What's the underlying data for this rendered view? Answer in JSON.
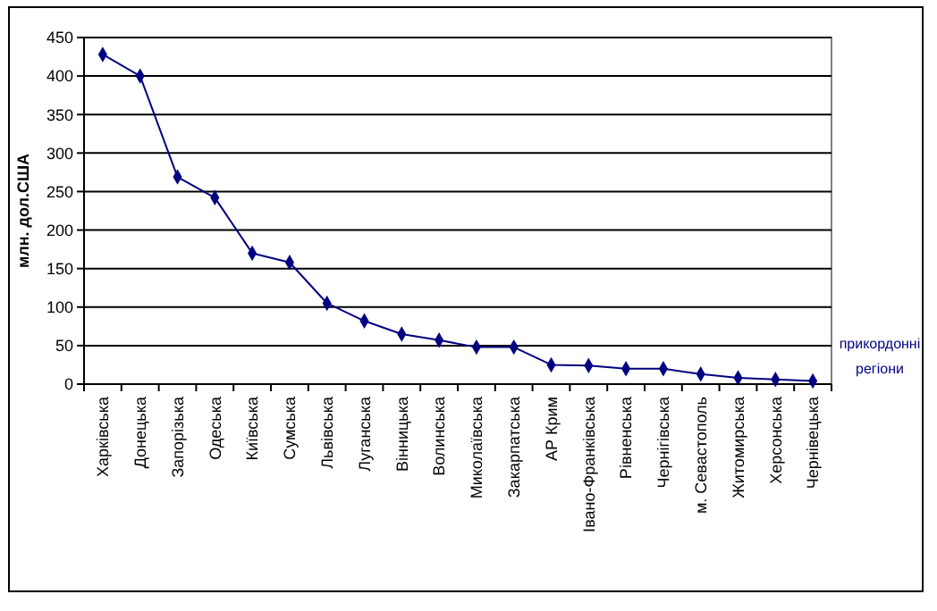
{
  "chart_data": {
    "type": "line",
    "categories": [
      "Харківська",
      "Донецька",
      "Запорізька",
      "Одеська",
      "Київська",
      "Сумська",
      "Львівська",
      "Луганська",
      "Вінницька",
      "Волинська",
      "Миколаївська",
      "Закарпатська",
      "АР Крим",
      "Івано-Франківська",
      "Рівненська",
      "Чернігівська",
      "м. Севастополь",
      "Житомирська",
      "Херсонська",
      "Чернівецька"
    ],
    "series": [
      {
        "color": "#000080",
        "values": [
          428,
          400,
          269,
          242,
          170,
          158,
          105,
          82,
          65,
          57,
          48,
          48,
          25,
          24,
          20,
          20,
          13,
          8,
          6,
          4
        ]
      }
    ],
    "ylabel": "млн. дол.США",
    "xlabel": "прикордонні регіони",
    "ylim": [
      0,
      450
    ],
    "yticks": [
      0,
      50,
      100,
      150,
      200,
      250,
      300,
      350,
      400,
      450
    ],
    "grid": "y",
    "marker": "diamond"
  }
}
